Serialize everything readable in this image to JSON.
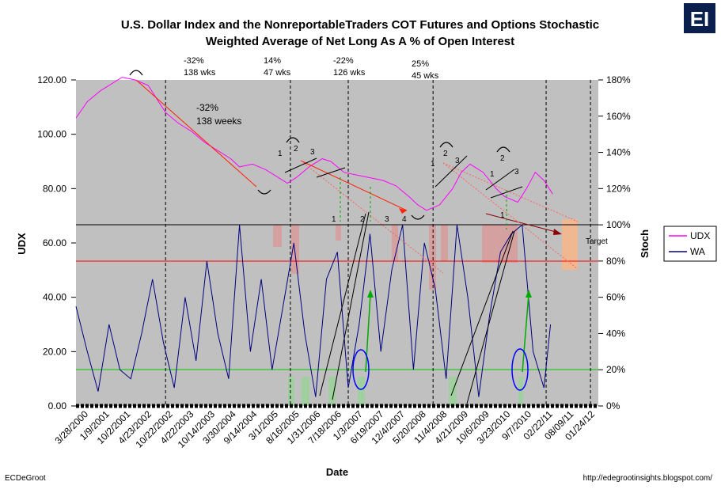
{
  "chart_data": {
    "type": "line",
    "title_line1": "U.S. Dollar Index and the NonreportableTraders COT Futures and Options Stochastic",
    "title_line2": "Weighted Average of Net Long As A % of Open Interest",
    "xlabel": "Date",
    "ylabel_left": "UDX",
    "ylabel_right": "Stoch",
    "ylim_left": [
      0,
      120
    ],
    "ylim_right": [
      0,
      180
    ],
    "y_ticks_left": [
      "0.00",
      "20.00",
      "40.00",
      "60.00",
      "80.00",
      "100.00",
      "120.00"
    ],
    "y_ticks_right": [
      "0%",
      "20%",
      "40%",
      "60%",
      "80%",
      "100%",
      "120%",
      "140%",
      "160%",
      "180%"
    ],
    "x_tick_labels": [
      "3/28/2000",
      "1/9/2001",
      "10/2/2001",
      "4/23/2002",
      "10/22/2002",
      "4/22/2003",
      "10/14/2003",
      "3/30/2004",
      "9/14/2004",
      "3/1/2005",
      "8/16/2005",
      "1/31/2006",
      "7/18/2006",
      "1/3/2007",
      "6/19/2007",
      "12/4/2007",
      "5/20/2008",
      "11/4/2008",
      "4/21/2009",
      "10/6/2009",
      "3/23/2010",
      "9/7/2010",
      "02/22/11",
      "08/09/11",
      "01/24/12"
    ],
    "legend": [
      "UDX",
      "WA"
    ],
    "series": [
      {
        "name": "UDX",
        "axis": "left",
        "color": "#ff00ff",
        "x": [
          2000.24,
          2000.5,
          2000.8,
          2001.0,
          2001.3,
          2001.6,
          2001.9,
          2002.1,
          2002.3,
          2002.6,
          2002.9,
          2003.2,
          2003.5,
          2003.8,
          2004.0,
          2004.3,
          2004.6,
          2004.9,
          2005.1,
          2005.3,
          2005.6,
          2005.9,
          2006.1,
          2006.4,
          2006.7,
          2007.0,
          2007.3,
          2007.6,
          2007.9,
          2008.1,
          2008.3,
          2008.6,
          2008.9,
          2009.1,
          2009.3,
          2009.6,
          2009.9,
          2010.1,
          2010.4,
          2010.6,
          2010.8,
          2011.0,
          2011.2
        ],
        "values": [
          106,
          112,
          116,
          118,
          121,
          120,
          118,
          113,
          108,
          104,
          101,
          97,
          94,
          91,
          88,
          89,
          87,
          84,
          82,
          84,
          88,
          91,
          90,
          86,
          85,
          84,
          83,
          81,
          77,
          74,
          72,
          74,
          80,
          86,
          89,
          86,
          80,
          77,
          75,
          80,
          86,
          83,
          78
        ]
      },
      {
        "name": "WA",
        "axis": "right",
        "color": "#00007f",
        "x": [
          2000.24,
          2000.5,
          2000.75,
          2001.0,
          2001.25,
          2001.5,
          2001.75,
          2002.0,
          2002.25,
          2002.5,
          2002.75,
          2003.0,
          2003.25,
          2003.5,
          2003.75,
          2004.0,
          2004.25,
          2004.5,
          2004.75,
          2005.0,
          2005.25,
          2005.5,
          2005.75,
          2006.0,
          2006.25,
          2006.5,
          2006.75,
          2007.0,
          2007.25,
          2007.5,
          2007.75,
          2008.0,
          2008.25,
          2008.5,
          2008.75,
          2009.0,
          2009.25,
          2009.5,
          2009.75,
          2010.0,
          2010.25,
          2010.5,
          2010.75,
          2011.0,
          2011.15
        ],
        "values": [
          55,
          30,
          8,
          45,
          20,
          15,
          40,
          70,
          35,
          10,
          60,
          25,
          80,
          40,
          15,
          100,
          30,
          70,
          20,
          55,
          90,
          40,
          5,
          70,
          85,
          10,
          45,
          95,
          30,
          75,
          100,
          20,
          90,
          65,
          15,
          100,
          60,
          5,
          50,
          85,
          95,
          100,
          30,
          10,
          45
        ]
      }
    ],
    "horizontal_lines": [
      {
        "label": "100%",
        "axis": "right",
        "value": 100,
        "color": "#000000"
      },
      {
        "label": "80%",
        "axis": "right",
        "value": 80,
        "color": "#ff0000"
      },
      {
        "label": "20%",
        "axis": "right",
        "value": 20,
        "color": "#00cc00"
      }
    ],
    "vertical_markers": [
      2002.3,
      2005.17,
      2006.5,
      2008.45,
      2011.05,
      2012.07
    ],
    "annotations": {
      "pct1": "-32%",
      "wks1": "138 wks",
      "pct2": "14%",
      "wks2": "47 wks",
      "pct3": "-22%",
      "wks3": "126 wks",
      "pct4": "25%",
      "wks4": "45 wks",
      "inner_pct": "-32%",
      "inner_weeks": "138 weeks",
      "target": "Target"
    },
    "wave_labels": [
      "1",
      "2",
      "3",
      "1",
      "2",
      "3",
      "4",
      "1",
      "2",
      "3",
      "1",
      "2",
      "3",
      "1"
    ]
  },
  "footer": {
    "left": "ECDeGroot",
    "right": "http://edegrootinsights.blogspot.com/"
  },
  "logo_text": "EI"
}
